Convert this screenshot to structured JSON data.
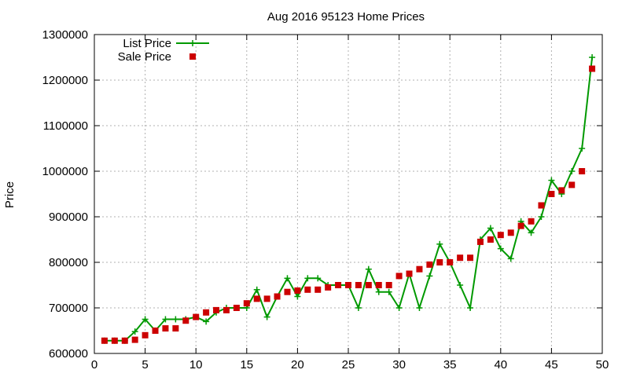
{
  "chart_data": {
    "type": "line",
    "title": "Aug 2016 95123 Home Prices",
    "xlabel": "",
    "ylabel": "Price",
    "xlim": [
      0,
      50
    ],
    "ylim": [
      600000,
      1300000
    ],
    "x_ticks": [
      0,
      5,
      10,
      15,
      20,
      25,
      30,
      35,
      40,
      45,
      50
    ],
    "y_ticks": [
      600000,
      700000,
      800000,
      900000,
      1000000,
      1100000,
      1200000,
      1300000
    ],
    "grid": true,
    "legend_position": "top-left",
    "series": [
      {
        "name": "List Price",
        "style": "line-plus",
        "color": "#009900",
        "x": [
          1,
          2,
          3,
          4,
          5,
          6,
          7,
          8,
          9,
          10,
          11,
          12,
          13,
          14,
          15,
          16,
          17,
          18,
          19,
          20,
          21,
          22,
          23,
          24,
          25,
          26,
          27,
          28,
          29,
          30,
          31,
          32,
          33,
          34,
          35,
          36,
          37,
          38,
          39,
          40,
          41,
          42,
          43,
          44,
          45,
          46,
          47,
          48,
          49
        ],
        "values": [
          628000,
          628000,
          628000,
          648000,
          675000,
          650000,
          675000,
          675000,
          675000,
          680000,
          670000,
          690000,
          700000,
          700000,
          700000,
          740000,
          680000,
          725000,
          765000,
          725000,
          765000,
          765000,
          750000,
          750000,
          750000,
          700000,
          785000,
          735000,
          735000,
          700000,
          775000,
          700000,
          770000,
          840000,
          800000,
          750000,
          700000,
          850000,
          875000,
          830000,
          808000,
          890000,
          865000,
          900000,
          980000,
          950000,
          1000000,
          1050000,
          1250000
        ]
      },
      {
        "name": "Sale Price",
        "style": "square-markers",
        "color": "#cc0000",
        "x": [
          1,
          2,
          3,
          4,
          5,
          6,
          7,
          8,
          9,
          10,
          11,
          12,
          13,
          14,
          15,
          16,
          17,
          18,
          19,
          20,
          21,
          22,
          23,
          24,
          25,
          26,
          27,
          28,
          29,
          30,
          31,
          32,
          33,
          34,
          35,
          36,
          37,
          38,
          39,
          40,
          41,
          42,
          43,
          44,
          45,
          46,
          47,
          48,
          49
        ],
        "values": [
          628000,
          628000,
          628000,
          630000,
          640000,
          650000,
          655000,
          655000,
          672000,
          680000,
          690000,
          695000,
          695000,
          700000,
          710000,
          720000,
          720000,
          725000,
          735000,
          738000,
          740000,
          740000,
          745000,
          750000,
          750000,
          750000,
          750000,
          750000,
          750000,
          770000,
          775000,
          785000,
          795000,
          800000,
          800000,
          810000,
          810000,
          845000,
          850000,
          860000,
          865000,
          880000,
          890000,
          925000,
          950000,
          958000,
          970000,
          1000000,
          1225000
        ]
      }
    ]
  }
}
